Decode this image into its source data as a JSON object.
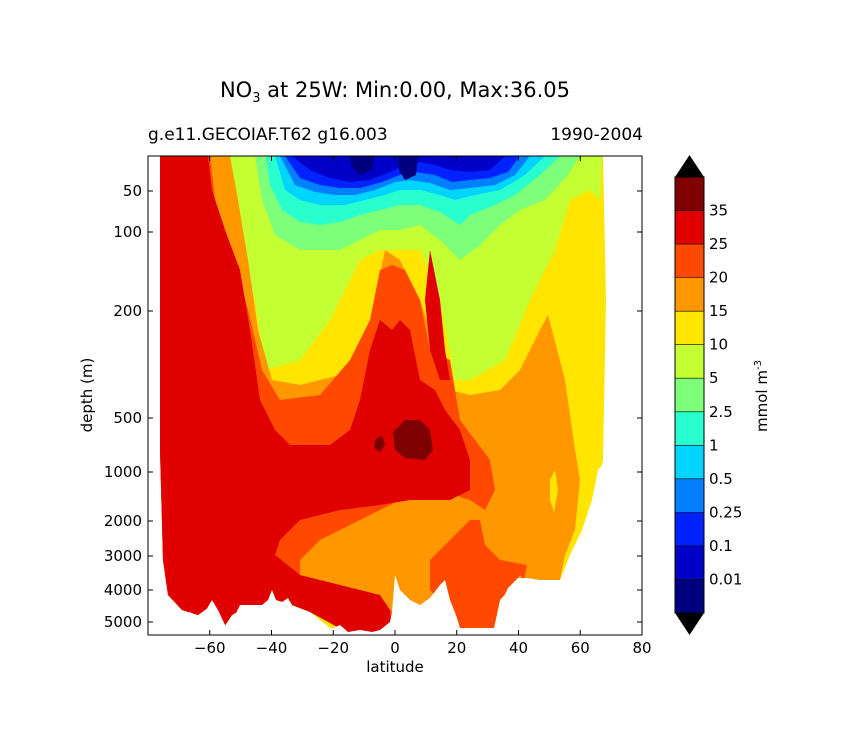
{
  "title": {
    "species_main": "NO",
    "species_sub": "3",
    "rest": " at 25W: Min:0.00, Max:36.05"
  },
  "subtitle_left": "g.e11.GECOIAF.T62 g16.003",
  "subtitle_right": "1990-2004",
  "chart_data": {
    "type": "heatmap",
    "xlabel": "latitude",
    "ylabel": "depth (m)",
    "xlim": [
      -80,
      80
    ],
    "x_ticks": [
      -60,
      -40,
      -20,
      0,
      20,
      40,
      60,
      80
    ],
    "y_ticks": [
      50,
      100,
      200,
      500,
      1000,
      2000,
      3000,
      4000,
      5000
    ],
    "grid": false,
    "colorbar": {
      "label": "mmol m-3",
      "levels": [
        0.01,
        0.1,
        0.25,
        0.5,
        1,
        2.5,
        5,
        10,
        15,
        20,
        25,
        35
      ],
      "colors": [
        "#00007f",
        "#0000c8",
        "#0022ff",
        "#0080ff",
        "#00d4ff",
        "#29ffce",
        "#7dff7a",
        "#c4ff33",
        "#ffe500",
        "#ff9800",
        "#ff4800",
        "#e00000",
        "#7f0000"
      ],
      "extend": "both"
    },
    "field_summary": {
      "min": 0.0,
      "max": 36.05,
      "max_location": {
        "latitude": 5,
        "depth": 700
      },
      "surface_low_band_latitude": [
        -35,
        35
      ]
    }
  }
}
